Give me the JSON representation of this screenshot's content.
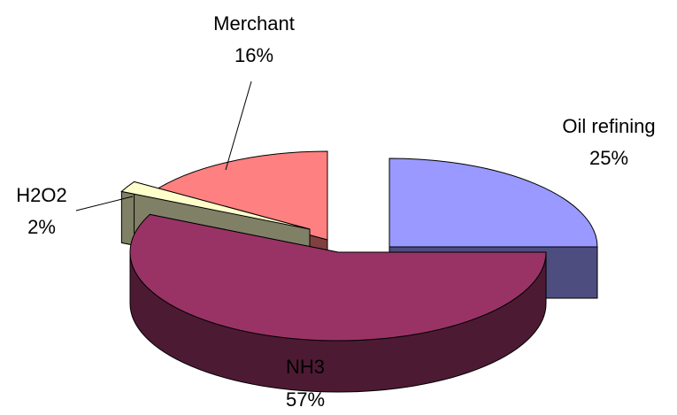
{
  "chart_data": {
    "type": "pie",
    "style": "3d-exploded",
    "title": "",
    "slices": [
      {
        "key": "oil",
        "label": "Oil refining",
        "value": 25,
        "value_label": "25%",
        "color_top": "#9999ff",
        "color_side": "#4d4d80"
      },
      {
        "key": "nh3",
        "label": "NH3",
        "value": 57,
        "value_label": "57%",
        "color_top": "#993366",
        "color_side": "#4d1a33"
      },
      {
        "key": "h2o2",
        "label": "H2O2",
        "value": 2,
        "value_label": "2%",
        "color_top": "#ffffcc",
        "color_side": "#808066"
      },
      {
        "key": "merchant",
        "label": "Merchant",
        "value": 16,
        "value_label": "16%",
        "color_top": "#ff8080",
        "color_side": "#804040"
      }
    ]
  }
}
